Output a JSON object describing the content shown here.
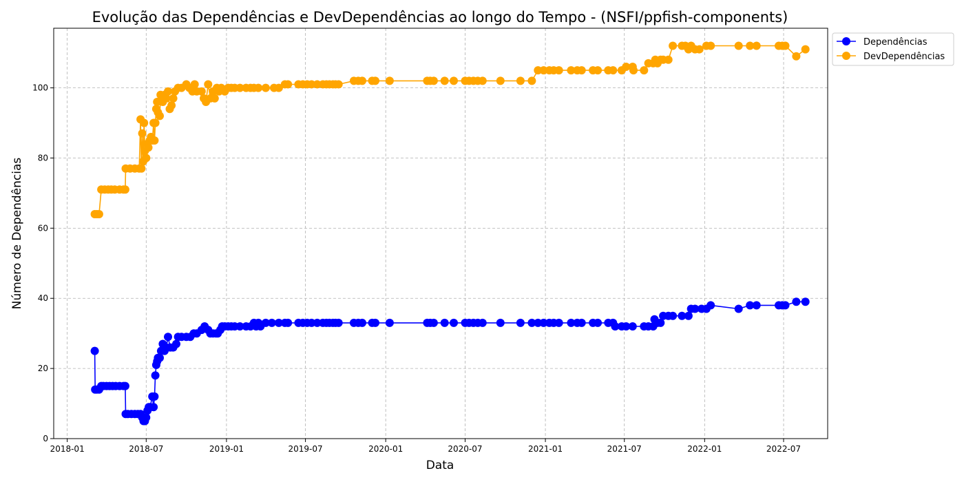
{
  "chart_data": {
    "type": "line",
    "title": "Evolução das Dependências e DevDependências ao longo do Tempo - (NSFI/ppfish-components)",
    "xlabel": "Data",
    "ylabel": "Número de Dependências",
    "xlim": [
      "2017-12-01",
      "2022-10-10"
    ],
    "ylim": [
      0,
      117
    ],
    "grid": true,
    "legend_position": "top-right-outside",
    "x_ticks": [
      "2018-01",
      "2018-07",
      "2019-01",
      "2019-07",
      "2020-01",
      "2020-07",
      "2021-01",
      "2021-07",
      "2022-01",
      "2022-07"
    ],
    "y_ticks": [
      0,
      20,
      40,
      60,
      80,
      100
    ],
    "series": [
      {
        "name": "Dependências",
        "color": "#0000ff",
        "points": [
          [
            "2018-03-05",
            25
          ],
          [
            "2018-03-06",
            14
          ],
          [
            "2018-03-10",
            14
          ],
          [
            "2018-03-15",
            14
          ],
          [
            "2018-03-20",
            15
          ],
          [
            "2018-03-25",
            15
          ],
          [
            "2018-04-01",
            15
          ],
          [
            "2018-04-08",
            15
          ],
          [
            "2018-04-15",
            15
          ],
          [
            "2018-04-22",
            15
          ],
          [
            "2018-05-01",
            15
          ],
          [
            "2018-05-10",
            15
          ],
          [
            "2018-05-14",
            15
          ],
          [
            "2018-05-15",
            7
          ],
          [
            "2018-05-20",
            7
          ],
          [
            "2018-05-28",
            7
          ],
          [
            "2018-06-05",
            7
          ],
          [
            "2018-06-12",
            7
          ],
          [
            "2018-06-18",
            7
          ],
          [
            "2018-06-22",
            6
          ],
          [
            "2018-06-25",
            5
          ],
          [
            "2018-06-28",
            5
          ],
          [
            "2018-07-01",
            6
          ],
          [
            "2018-07-04",
            8
          ],
          [
            "2018-07-07",
            9
          ],
          [
            "2018-07-10",
            9
          ],
          [
            "2018-07-15",
            12
          ],
          [
            "2018-07-18",
            9
          ],
          [
            "2018-07-20",
            12
          ],
          [
            "2018-07-22",
            18
          ],
          [
            "2018-07-24",
            21
          ],
          [
            "2018-07-26",
            22
          ],
          [
            "2018-07-28",
            23
          ],
          [
            "2018-08-01",
            23
          ],
          [
            "2018-08-04",
            25
          ],
          [
            "2018-08-08",
            27
          ],
          [
            "2018-08-12",
            25
          ],
          [
            "2018-08-16",
            26
          ],
          [
            "2018-08-20",
            29
          ],
          [
            "2018-08-25",
            26
          ],
          [
            "2018-09-01",
            26
          ],
          [
            "2018-09-08",
            27
          ],
          [
            "2018-09-12",
            29
          ],
          [
            "2018-09-20",
            29
          ],
          [
            "2018-10-01",
            29
          ],
          [
            "2018-10-10",
            29
          ],
          [
            "2018-10-18",
            30
          ],
          [
            "2018-10-25",
            30
          ],
          [
            "2018-11-05",
            31
          ],
          [
            "2018-11-12",
            32
          ],
          [
            "2018-11-20",
            31
          ],
          [
            "2018-11-25",
            30
          ],
          [
            "2018-12-01",
            30
          ],
          [
            "2018-12-08",
            30
          ],
          [
            "2018-12-12",
            30
          ],
          [
            "2018-12-18",
            31
          ],
          [
            "2018-12-22",
            32
          ],
          [
            "2018-12-28",
            32
          ],
          [
            "2019-01-05",
            32
          ],
          [
            "2019-01-12",
            32
          ],
          [
            "2019-01-20",
            32
          ],
          [
            "2019-02-01",
            32
          ],
          [
            "2019-02-15",
            32
          ],
          [
            "2019-02-25",
            32
          ],
          [
            "2019-03-05",
            33
          ],
          [
            "2019-03-10",
            32
          ],
          [
            "2019-03-15",
            33
          ],
          [
            "2019-03-20",
            32
          ],
          [
            "2019-04-01",
            33
          ],
          [
            "2019-04-15",
            33
          ],
          [
            "2019-05-01",
            33
          ],
          [
            "2019-05-15",
            33
          ],
          [
            "2019-05-22",
            33
          ],
          [
            "2019-06-15",
            33
          ],
          [
            "2019-06-25",
            33
          ],
          [
            "2019-07-05",
            33
          ],
          [
            "2019-07-15",
            33
          ],
          [
            "2019-07-28",
            33
          ],
          [
            "2019-08-10",
            33
          ],
          [
            "2019-08-18",
            33
          ],
          [
            "2019-08-25",
            33
          ],
          [
            "2019-09-02",
            33
          ],
          [
            "2019-09-08",
            33
          ],
          [
            "2019-09-15",
            33
          ],
          [
            "2019-10-20",
            33
          ],
          [
            "2019-10-30",
            33
          ],
          [
            "2019-11-08",
            33
          ],
          [
            "2019-12-01",
            33
          ],
          [
            "2019-12-08",
            33
          ],
          [
            "2020-01-10",
            33
          ],
          [
            "2020-04-05",
            33
          ],
          [
            "2020-04-12",
            33
          ],
          [
            "2020-04-20",
            33
          ],
          [
            "2020-05-15",
            33
          ],
          [
            "2020-06-05",
            33
          ],
          [
            "2020-07-01",
            33
          ],
          [
            "2020-07-10",
            33
          ],
          [
            "2020-07-20",
            33
          ],
          [
            "2020-07-30",
            33
          ],
          [
            "2020-08-10",
            33
          ],
          [
            "2020-09-20",
            33
          ],
          [
            "2020-11-05",
            33
          ],
          [
            "2020-12-01",
            33
          ],
          [
            "2020-12-15",
            33
          ],
          [
            "2020-12-28",
            33
          ],
          [
            "2021-01-10",
            33
          ],
          [
            "2021-01-20",
            33
          ],
          [
            "2021-02-01",
            33
          ],
          [
            "2021-03-01",
            33
          ],
          [
            "2021-03-15",
            33
          ],
          [
            "2021-03-25",
            33
          ],
          [
            "2021-04-20",
            33
          ],
          [
            "2021-05-01",
            33
          ],
          [
            "2021-05-25",
            33
          ],
          [
            "2021-06-05",
            33
          ],
          [
            "2021-06-10",
            32
          ],
          [
            "2021-06-25",
            32
          ],
          [
            "2021-07-05",
            32
          ],
          [
            "2021-07-20",
            32
          ],
          [
            "2021-08-15",
            32
          ],
          [
            "2021-08-25",
            32
          ],
          [
            "2021-09-05",
            32
          ],
          [
            "2021-09-08",
            34
          ],
          [
            "2021-09-15",
            33
          ],
          [
            "2021-09-22",
            33
          ],
          [
            "2021-09-28",
            35
          ],
          [
            "2021-10-10",
            35
          ],
          [
            "2021-10-20",
            35
          ],
          [
            "2021-11-10",
            35
          ],
          [
            "2021-11-25",
            35
          ],
          [
            "2021-12-01",
            37
          ],
          [
            "2021-12-10",
            37
          ],
          [
            "2021-12-25",
            37
          ],
          [
            "2022-01-05",
            37
          ],
          [
            "2022-01-15",
            38
          ],
          [
            "2022-03-20",
            37
          ],
          [
            "2022-04-15",
            38
          ],
          [
            "2022-04-30",
            38
          ],
          [
            "2022-06-20",
            38
          ],
          [
            "2022-06-28",
            38
          ],
          [
            "2022-07-05",
            38
          ],
          [
            "2022-07-30",
            39
          ],
          [
            "2022-08-20",
            39
          ]
        ]
      },
      {
        "name": "DevDependências",
        "color": "#ffa500",
        "points": [
          [
            "2018-03-05",
            64
          ],
          [
            "2018-03-10",
            64
          ],
          [
            "2018-03-15",
            64
          ],
          [
            "2018-03-20",
            71
          ],
          [
            "2018-03-28",
            71
          ],
          [
            "2018-04-05",
            71
          ],
          [
            "2018-04-12",
            71
          ],
          [
            "2018-04-20",
            71
          ],
          [
            "2018-05-01",
            71
          ],
          [
            "2018-05-10",
            71
          ],
          [
            "2018-05-14",
            71
          ],
          [
            "2018-05-15",
            77
          ],
          [
            "2018-05-25",
            77
          ],
          [
            "2018-06-05",
            77
          ],
          [
            "2018-06-15",
            77
          ],
          [
            "2018-06-18",
            91
          ],
          [
            "2018-06-20",
            77
          ],
          [
            "2018-06-22",
            87
          ],
          [
            "2018-06-24",
            79
          ],
          [
            "2018-06-26",
            90
          ],
          [
            "2018-06-28",
            82
          ],
          [
            "2018-07-01",
            80
          ],
          [
            "2018-07-03",
            84
          ],
          [
            "2018-07-06",
            83
          ],
          [
            "2018-07-09",
            85
          ],
          [
            "2018-07-12",
            86
          ],
          [
            "2018-07-15",
            85
          ],
          [
            "2018-07-18",
            90
          ],
          [
            "2018-07-20",
            85
          ],
          [
            "2018-07-22",
            90
          ],
          [
            "2018-07-24",
            94
          ],
          [
            "2018-07-26",
            96
          ],
          [
            "2018-07-28",
            93
          ],
          [
            "2018-08-01",
            92
          ],
          [
            "2018-08-03",
            98
          ],
          [
            "2018-08-08",
            96
          ],
          [
            "2018-08-12",
            98
          ],
          [
            "2018-08-16",
            97
          ],
          [
            "2018-08-20",
            99
          ],
          [
            "2018-08-24",
            94
          ],
          [
            "2018-08-28",
            95
          ],
          [
            "2018-09-01",
            97
          ],
          [
            "2018-09-05",
            99
          ],
          [
            "2018-09-12",
            100
          ],
          [
            "2018-09-20",
            100
          ],
          [
            "2018-10-01",
            101
          ],
          [
            "2018-10-08",
            100
          ],
          [
            "2018-10-15",
            99
          ],
          [
            "2018-10-20",
            101
          ],
          [
            "2018-10-25",
            99
          ],
          [
            "2018-11-05",
            99
          ],
          [
            "2018-11-10",
            97
          ],
          [
            "2018-11-15",
            96
          ],
          [
            "2018-11-20",
            101
          ],
          [
            "2018-11-25",
            97
          ],
          [
            "2018-12-01",
            99
          ],
          [
            "2018-12-05",
            97
          ],
          [
            "2018-12-10",
            100
          ],
          [
            "2018-12-15",
            99
          ],
          [
            "2018-12-20",
            100
          ],
          [
            "2018-12-28",
            99
          ],
          [
            "2019-01-05",
            100
          ],
          [
            "2019-01-12",
            100
          ],
          [
            "2019-01-20",
            100
          ],
          [
            "2019-02-01",
            100
          ],
          [
            "2019-02-15",
            100
          ],
          [
            "2019-02-25",
            100
          ],
          [
            "2019-03-05",
            100
          ],
          [
            "2019-03-15",
            100
          ],
          [
            "2019-04-01",
            100
          ],
          [
            "2019-04-20",
            100
          ],
          [
            "2019-05-01",
            100
          ],
          [
            "2019-05-15",
            101
          ],
          [
            "2019-05-22",
            101
          ],
          [
            "2019-06-15",
            101
          ],
          [
            "2019-06-25",
            101
          ],
          [
            "2019-07-05",
            101
          ],
          [
            "2019-07-15",
            101
          ],
          [
            "2019-07-28",
            101
          ],
          [
            "2019-08-10",
            101
          ],
          [
            "2019-08-18",
            101
          ],
          [
            "2019-08-25",
            101
          ],
          [
            "2019-09-02",
            101
          ],
          [
            "2019-09-08",
            101
          ],
          [
            "2019-09-15",
            101
          ],
          [
            "2019-10-20",
            102
          ],
          [
            "2019-10-30",
            102
          ],
          [
            "2019-11-08",
            102
          ],
          [
            "2019-12-01",
            102
          ],
          [
            "2019-12-08",
            102
          ],
          [
            "2020-01-10",
            102
          ],
          [
            "2020-04-05",
            102
          ],
          [
            "2020-04-12",
            102
          ],
          [
            "2020-04-20",
            102
          ],
          [
            "2020-05-15",
            102
          ],
          [
            "2020-06-05",
            102
          ],
          [
            "2020-07-01",
            102
          ],
          [
            "2020-07-10",
            102
          ],
          [
            "2020-07-20",
            102
          ],
          [
            "2020-07-30",
            102
          ],
          [
            "2020-08-10",
            102
          ],
          [
            "2020-09-20",
            102
          ],
          [
            "2020-11-05",
            102
          ],
          [
            "2020-12-01",
            102
          ],
          [
            "2020-12-15",
            105
          ],
          [
            "2020-12-28",
            105
          ],
          [
            "2021-01-10",
            105
          ],
          [
            "2021-01-20",
            105
          ],
          [
            "2021-02-01",
            105
          ],
          [
            "2021-03-01",
            105
          ],
          [
            "2021-03-15",
            105
          ],
          [
            "2021-03-25",
            105
          ],
          [
            "2021-04-20",
            105
          ],
          [
            "2021-05-01",
            105
          ],
          [
            "2021-05-25",
            105
          ],
          [
            "2021-06-05",
            105
          ],
          [
            "2021-06-25",
            105
          ],
          [
            "2021-07-05",
            106
          ],
          [
            "2021-07-20",
            106
          ],
          [
            "2021-07-22",
            105
          ],
          [
            "2021-08-15",
            105
          ],
          [
            "2021-08-25",
            107
          ],
          [
            "2021-09-05",
            107
          ],
          [
            "2021-09-10",
            108
          ],
          [
            "2021-09-15",
            107
          ],
          [
            "2021-09-22",
            108
          ],
          [
            "2021-09-28",
            108
          ],
          [
            "2021-10-10",
            108
          ],
          [
            "2021-10-20",
            112
          ],
          [
            "2021-11-10",
            112
          ],
          [
            "2021-11-18",
            112
          ],
          [
            "2021-11-25",
            111
          ],
          [
            "2021-12-01",
            112
          ],
          [
            "2021-12-10",
            111
          ],
          [
            "2021-12-20",
            111
          ],
          [
            "2022-01-05",
            112
          ],
          [
            "2022-01-15",
            112
          ],
          [
            "2022-03-20",
            112
          ],
          [
            "2022-04-15",
            112
          ],
          [
            "2022-04-30",
            112
          ],
          [
            "2022-06-20",
            112
          ],
          [
            "2022-06-28",
            112
          ],
          [
            "2022-07-05",
            112
          ],
          [
            "2022-07-30",
            109
          ],
          [
            "2022-08-20",
            111
          ]
        ]
      }
    ]
  }
}
